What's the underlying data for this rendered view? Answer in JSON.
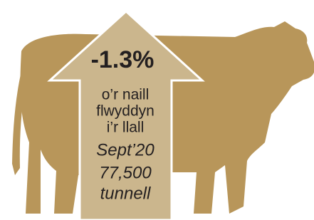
{
  "headline": {
    "change": "-1.3%",
    "caption": [
      "o’r naill",
      "flwyddyn",
      "i’r llall"
    ]
  },
  "detail": {
    "period": "Sept’20",
    "amount": "77,500",
    "unit": "tunnell"
  }
}
